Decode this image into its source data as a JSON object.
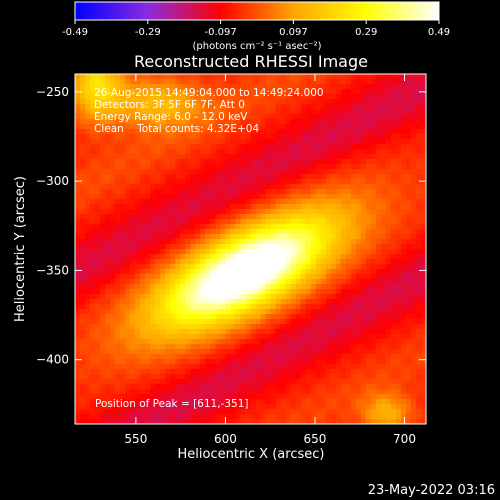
{
  "chart_data": {
    "type": "heatmap",
    "title": "Reconstructed RHESSI Image",
    "xlabel": "Heliocentric X (arcsec)",
    "ylabel": "Heliocentric Y (arcsec)",
    "xlim": [
      516,
      712
    ],
    "ylim": [
      -436,
      -240
    ],
    "xticks": [
      550,
      600,
      650,
      700
    ],
    "yticks": [
      -250,
      -300,
      -350,
      -400
    ],
    "colorbar": {
      "vmin": -0.49,
      "vmax": 0.49,
      "ticks": [
        "-0.49",
        "-0.29",
        "-0.097",
        "0.097",
        "0.29",
        "0.49"
      ],
      "unit_label": "(photons cm⁻² s⁻¹ asec⁻²)",
      "colormap": [
        "#0000ff",
        "#8a2be2",
        "#ff0000",
        "#ffa500",
        "#ffff00",
        "#ffffff"
      ]
    },
    "info_lines": [
      "26-Aug-2015 14:49:04.000 to 14:49:24.000",
      "Detectors: 3F 5F 6F 7F, Att 0",
      "Energy Range: 6.0 - 12.0 keV",
      "Clean    Total counts: 4.32E+04"
    ],
    "peak_label": "Position of Peak = [611,-351]",
    "peak": [
      611,
      -351
    ],
    "grid": false
  },
  "footer_timestamp": "23-May-2022 03:16"
}
